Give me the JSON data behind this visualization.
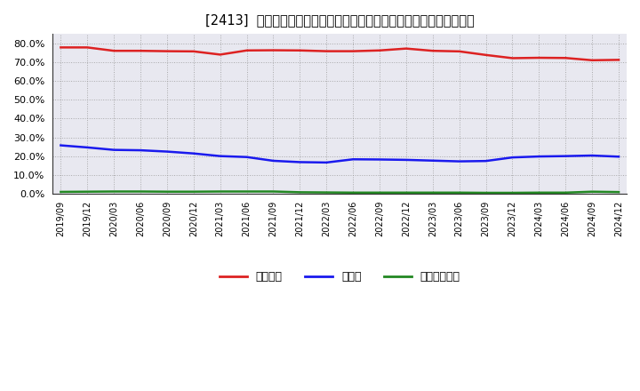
{
  "title": "[2413]  自己資本、のれん、繰延税金資産の総資産に対する比率の推移",
  "x_labels": [
    "2019/09",
    "2019/12",
    "2020/03",
    "2020/06",
    "2020/09",
    "2020/12",
    "2021/03",
    "2021/06",
    "2021/09",
    "2021/12",
    "2022/03",
    "2022/06",
    "2022/09",
    "2022/12",
    "2023/03",
    "2023/06",
    "2023/09",
    "2023/12",
    "2024/03",
    "2024/06",
    "2024/09",
    "2024/12"
  ],
  "equity": [
    0.778,
    0.778,
    0.76,
    0.76,
    0.758,
    0.757,
    0.74,
    0.762,
    0.763,
    0.762,
    0.758,
    0.758,
    0.762,
    0.772,
    0.76,
    0.757,
    0.738,
    0.721,
    0.723,
    0.722,
    0.71,
    0.712
  ],
  "noren": [
    0.258,
    0.247,
    0.234,
    0.232,
    0.225,
    0.215,
    0.201,
    0.196,
    0.176,
    0.169,
    0.167,
    0.184,
    0.183,
    0.181,
    0.177,
    0.173,
    0.175,
    0.194,
    0.199,
    0.201,
    0.204,
    0.198
  ],
  "deferred_tax": [
    0.011,
    0.012,
    0.013,
    0.013,
    0.012,
    0.012,
    0.013,
    0.013,
    0.013,
    0.009,
    0.008,
    0.007,
    0.007,
    0.007,
    0.007,
    0.007,
    0.006,
    0.006,
    0.007,
    0.007,
    0.012,
    0.01
  ],
  "equity_color": "#dd2222",
  "noren_color": "#1a1aee",
  "deferred_tax_color": "#228822",
  "legend_labels": [
    "自己資本",
    "のれん",
    "繰延税金資産"
  ],
  "ylim": [
    0.0,
    0.85
  ],
  "yticks": [
    0.0,
    0.1,
    0.2,
    0.3,
    0.4,
    0.5,
    0.6,
    0.7,
    0.8
  ],
  "background_color": "#ffffff",
  "plot_bg_color": "#e8e8f0",
  "grid_color": "#999999",
  "line_width": 1.8
}
